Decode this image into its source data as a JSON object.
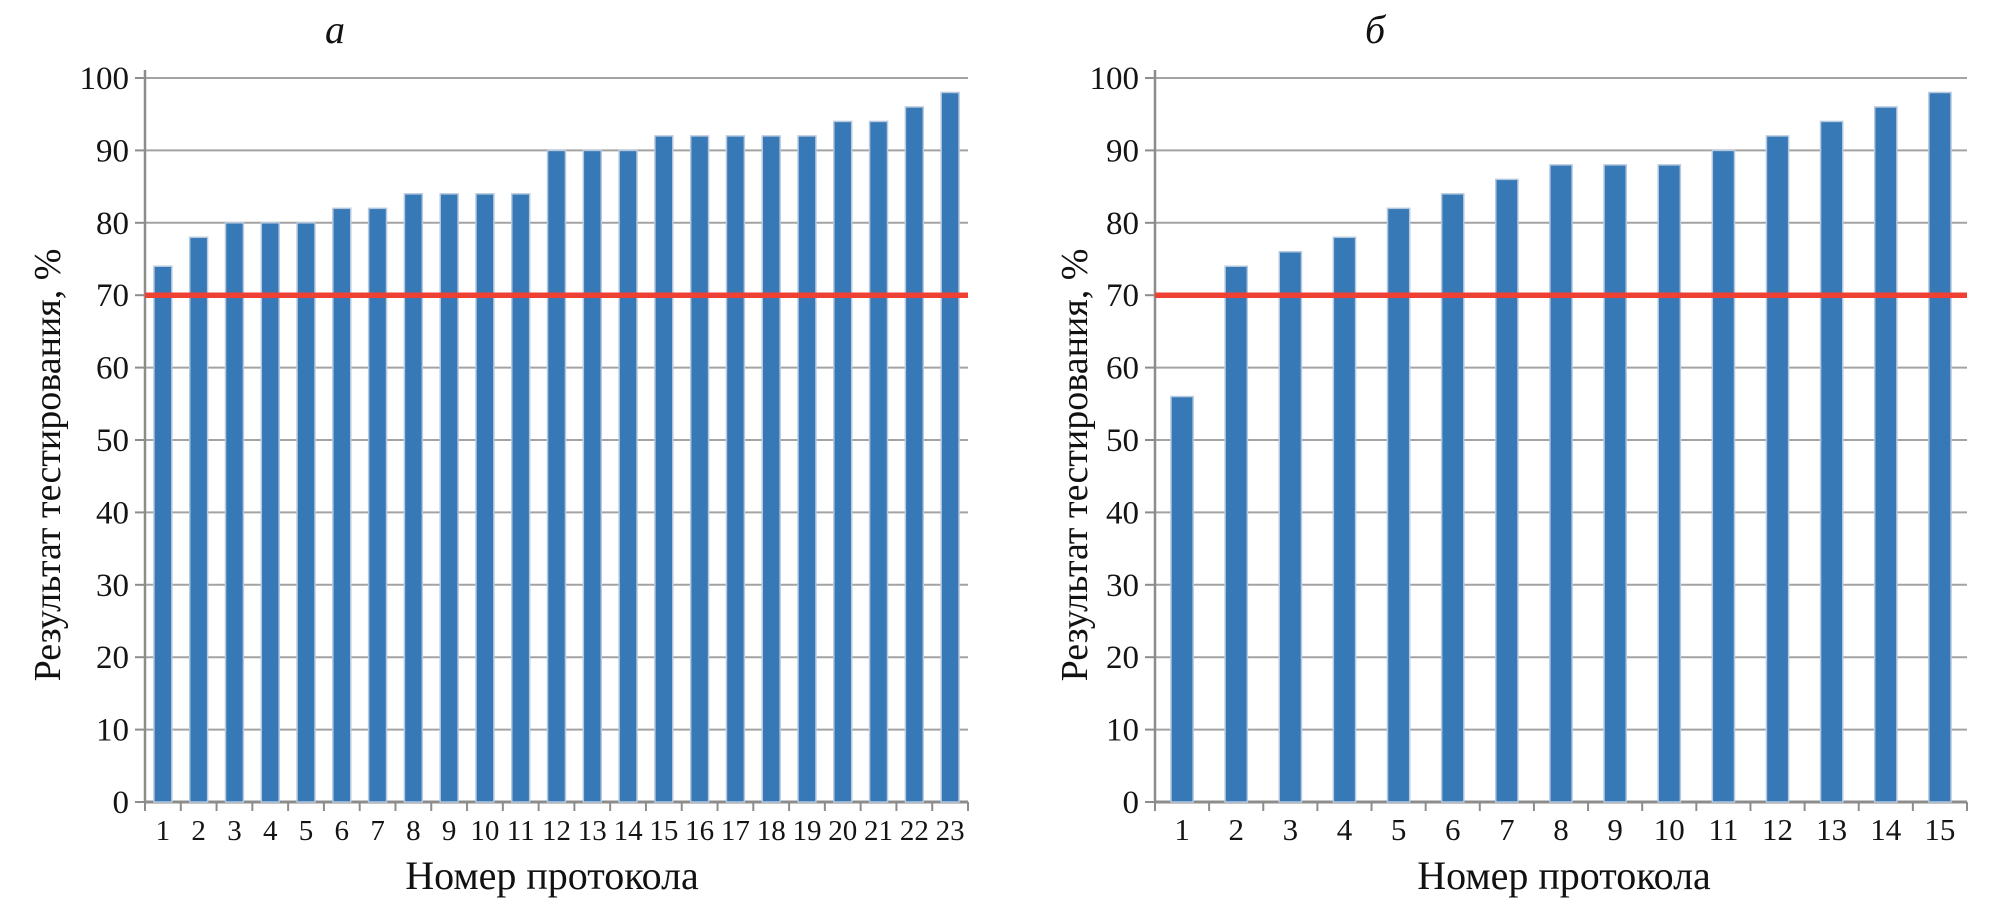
{
  "chart_data": [
    {
      "type": "bar",
      "panel_label": "а",
      "title": "а",
      "categories": [
        "1",
        "2",
        "3",
        "4",
        "5",
        "6",
        "7",
        "8",
        "9",
        "10",
        "11",
        "12",
        "13",
        "14",
        "15",
        "16",
        "17",
        "18",
        "19",
        "20",
        "21",
        "22",
        "23"
      ],
      "values": [
        74,
        78,
        80,
        80,
        80,
        82,
        82,
        84,
        84,
        84,
        84,
        90,
        90,
        90,
        92,
        92,
        92,
        92,
        92,
        94,
        94,
        96,
        98
      ],
      "xlabel": "Номер протокола",
      "ylabel": "Результат тестирования, %",
      "ylim": [
        0,
        100
      ],
      "yticks": [
        0,
        10,
        20,
        30,
        40,
        50,
        60,
        70,
        80,
        90,
        100
      ],
      "threshold": {
        "value": 70,
        "color": "#ee4134"
      },
      "bar_color": "#3779b6",
      "bar_edge_color": "#b7c9de",
      "grid_color": "#a3a3a3",
      "axis_color": "#8c8c8c",
      "grid": true,
      "legend": "none"
    },
    {
      "type": "bar",
      "panel_label": "б",
      "title": "б",
      "categories": [
        "1",
        "2",
        "3",
        "4",
        "5",
        "6",
        "7",
        "8",
        "9",
        "10",
        "11",
        "12",
        "13",
        "14",
        "15"
      ],
      "values": [
        56,
        74,
        76,
        78,
        82,
        84,
        86,
        88,
        88,
        88,
        90,
        92,
        94,
        96,
        98
      ],
      "xlabel": "Номер протокола",
      "ylabel": "Результат тестирования, %",
      "ylim": [
        0,
        100
      ],
      "yticks": [
        0,
        10,
        20,
        30,
        40,
        50,
        60,
        70,
        80,
        90,
        100
      ],
      "threshold": {
        "value": 70,
        "color": "#ee4134"
      },
      "bar_color": "#3779b6",
      "bar_edge_color": "#b7c9de",
      "grid_color": "#a3a3a3",
      "axis_color": "#8c8c8c",
      "grid": true,
      "legend": "none"
    }
  ]
}
